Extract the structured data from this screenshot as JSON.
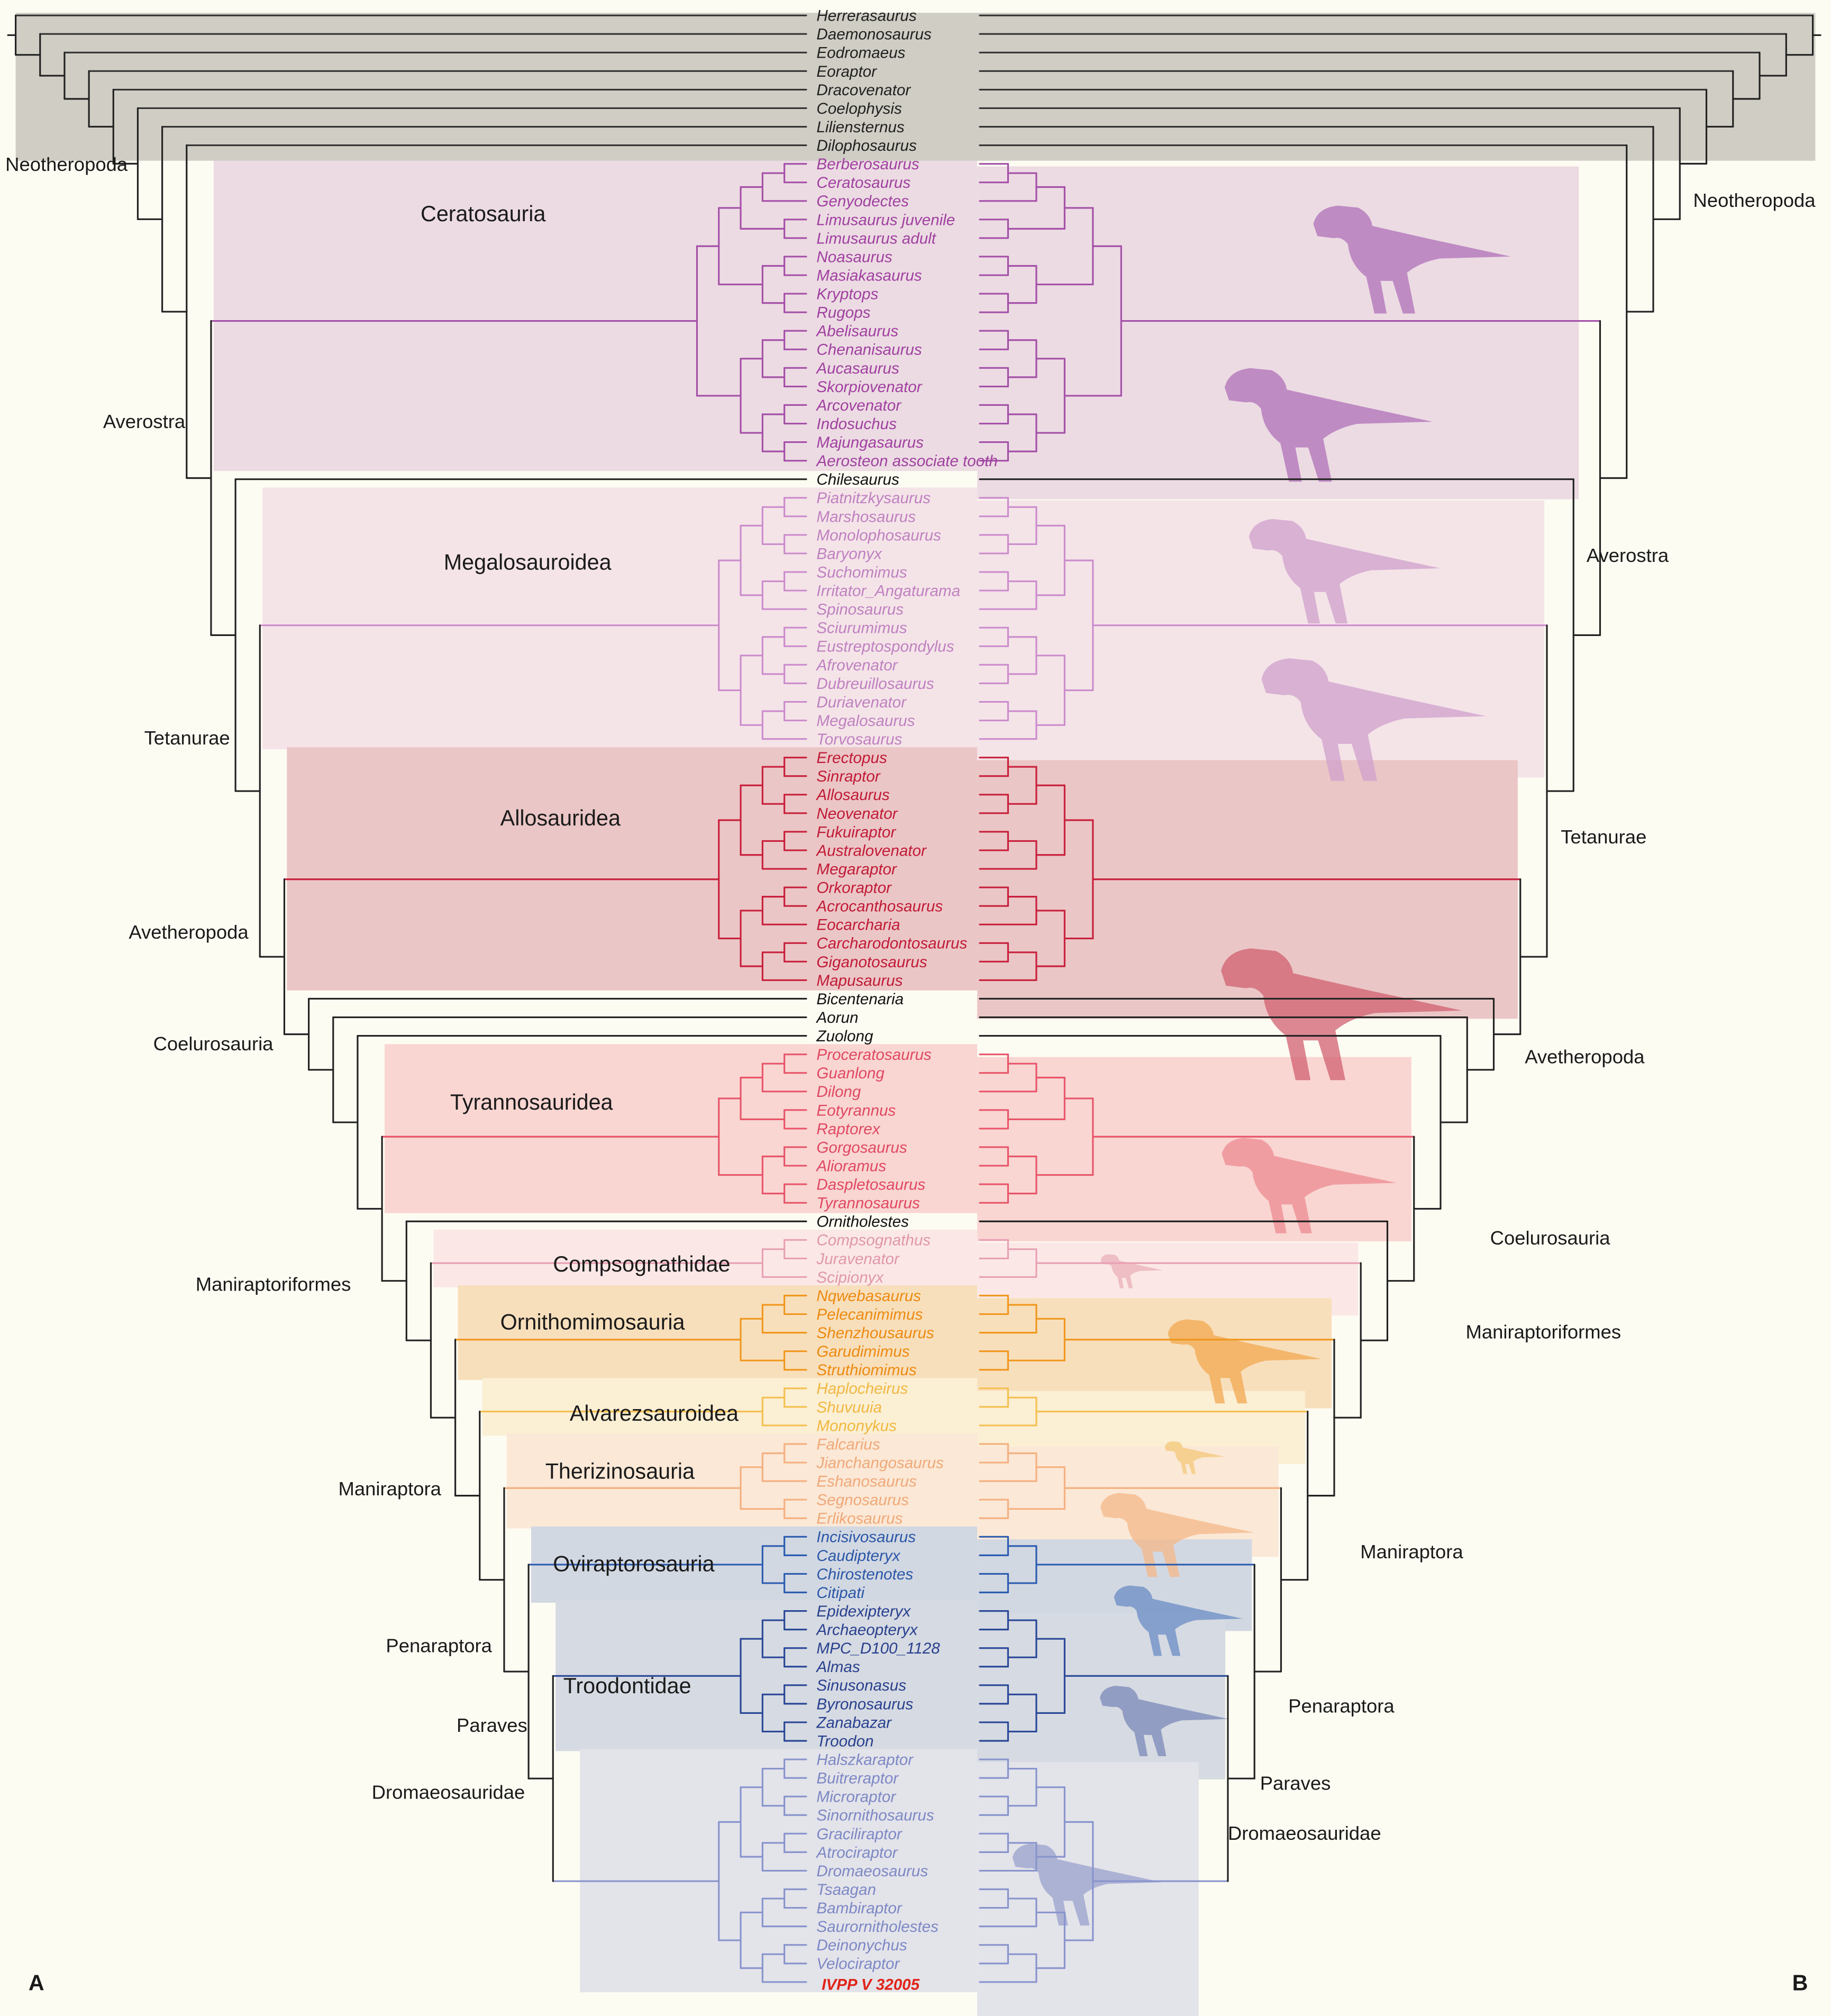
{
  "panels": {
    "left": "A",
    "right": "B"
  },
  "groups": {
    "out": {
      "label": "",
      "line": "#333333",
      "text": "#1f1f1f",
      "bg": "#cfcdc4"
    },
    "none": {
      "label": "",
      "line": "#222222",
      "text": "#111111",
      "bg": ""
    },
    "cera": {
      "label": "Ceratosauria",
      "line": "#a550a8",
      "text": "#a040a0",
      "bg": "#ecdbe3",
      "silhouette": "#b070b8"
    },
    "mega": {
      "label": "Megalosauroidea",
      "line": "#cc8ccc",
      "text": "#c080c0",
      "bg": "#f4e4e8",
      "silhouette": "#d0a0cc"
    },
    "allo": {
      "label": "Allosauridea",
      "line": "#c8203c",
      "text": "#c01a36",
      "bg": "#ebc6c6",
      "silhouette": "#d06070"
    },
    "tyr": {
      "label": "Tyrannosauridea",
      "line": "#e8556a",
      "text": "#e04862",
      "bg": "#f9d6d2",
      "silhouette": "#ec8a90"
    },
    "comp": {
      "label": "Compsognathidae",
      "line": "#e8a0b4",
      "text": "#e096aa",
      "bg": "#fbe8e6",
      "silhouette": "#eab0b8"
    },
    "orni": {
      "label": "Ornithomimosauria",
      "line": "#f0981e",
      "text": "#ec8a10",
      "bg": "#f8dfbc",
      "silhouette": "#f2a850"
    },
    "alv": {
      "label": "Alvarezsauroidea",
      "line": "#f4c050",
      "text": "#f0b840",
      "bg": "#fbefd4",
      "silhouette": "#f4c878"
    },
    "ther": {
      "label": "Therizinosauria",
      "line": "#f4b080",
      "text": "#f0a878",
      "bg": "#fbe8d6",
      "silhouette": "#f4b888"
    },
    "ovi": {
      "label": "Oviraptorosauria",
      "line": "#2c5cb0",
      "text": "#2a56a8",
      "bg": "#d2d8e2",
      "silhouette": "#6a8cc4"
    },
    "troo": {
      "label": "Troodontidae",
      "line": "#2a4898",
      "text": "#28408e",
      "bg": "#d6dae2",
      "silhouette": "#7a88b8"
    },
    "drom": {
      "label": "Dromaeosauridae",
      "line": "#8894cc",
      "text": "#7c88c4",
      "bg": "#e3e3ea",
      "silhouette": "#9aa2cc"
    }
  },
  "taxa": [
    {
      "name": "Herrerasaurus",
      "g": "out"
    },
    {
      "name": "Daemonosaurus",
      "g": "out"
    },
    {
      "name": "Eodromaeus",
      "g": "out"
    },
    {
      "name": "Eoraptor",
      "g": "out"
    },
    {
      "name": "Dracovenator",
      "g": "out"
    },
    {
      "name": "Coelophysis",
      "g": "out"
    },
    {
      "name": "Liliensternus",
      "g": "out"
    },
    {
      "name": "Dilophosaurus",
      "g": "out"
    },
    {
      "name": "Berberosaurus",
      "g": "cera"
    },
    {
      "name": "Ceratosaurus",
      "g": "cera"
    },
    {
      "name": "Genyodectes",
      "g": "cera"
    },
    {
      "name": "Limusaurus juvenile",
      "g": "cera"
    },
    {
      "name": "Limusaurus adult",
      "g": "cera"
    },
    {
      "name": "Noasaurus",
      "g": "cera"
    },
    {
      "name": "Masiakasaurus",
      "g": "cera"
    },
    {
      "name": "Kryptops",
      "g": "cera"
    },
    {
      "name": "Rugops",
      "g": "cera"
    },
    {
      "name": "Abelisaurus",
      "g": "cera"
    },
    {
      "name": "Chenanisaurus",
      "g": "cera"
    },
    {
      "name": "Aucasaurus",
      "g": "cera"
    },
    {
      "name": "Skorpiovenator",
      "g": "cera"
    },
    {
      "name": "Arcovenator",
      "g": "cera"
    },
    {
      "name": "Indosuchus",
      "g": "cera"
    },
    {
      "name": "Majungasaurus",
      "g": "cera"
    },
    {
      "name": "Aerosteon associate tooth",
      "g": "cera"
    },
    {
      "name": "Chilesaurus",
      "g": "none"
    },
    {
      "name": "Piatnitzkysaurus",
      "g": "mega"
    },
    {
      "name": "Marshosaurus",
      "g": "mega"
    },
    {
      "name": "Monolophosaurus",
      "g": "mega"
    },
    {
      "name": "Baryonyx",
      "g": "mega"
    },
    {
      "name": "Suchomimus",
      "g": "mega"
    },
    {
      "name": "Irritator_Angaturama",
      "g": "mega"
    },
    {
      "name": "Spinosaurus",
      "g": "mega"
    },
    {
      "name": "Sciurumimus",
      "g": "mega"
    },
    {
      "name": "Eustreptospondylus",
      "g": "mega"
    },
    {
      "name": "Afrovenator",
      "g": "mega"
    },
    {
      "name": "Dubreuillosaurus",
      "g": "mega"
    },
    {
      "name": "Duriavenator",
      "g": "mega"
    },
    {
      "name": "Megalosaurus",
      "g": "mega"
    },
    {
      "name": "Torvosaurus",
      "g": "mega"
    },
    {
      "name": "Erectopus",
      "g": "allo"
    },
    {
      "name": "Sinraptor",
      "g": "allo"
    },
    {
      "name": "Allosaurus",
      "g": "allo"
    },
    {
      "name": "Neovenator",
      "g": "allo"
    },
    {
      "name": "Fukuiraptor",
      "g": "allo"
    },
    {
      "name": "Australovenator",
      "g": "allo"
    },
    {
      "name": "Megaraptor",
      "g": "allo"
    },
    {
      "name": "Orkoraptor",
      "g": "allo"
    },
    {
      "name": "Acrocanthosaurus",
      "g": "allo"
    },
    {
      "name": "Eocarcharia",
      "g": "allo"
    },
    {
      "name": "Carcharodontosaurus",
      "g": "allo"
    },
    {
      "name": "Giganotosaurus",
      "g": "allo"
    },
    {
      "name": "Mapusaurus",
      "g": "allo"
    },
    {
      "name": "Bicentenaria",
      "g": "none"
    },
    {
      "name": "Aorun",
      "g": "none"
    },
    {
      "name": "Zuolong",
      "g": "none"
    },
    {
      "name": "Proceratosaurus",
      "g": "tyr"
    },
    {
      "name": "Guanlong",
      "g": "tyr"
    },
    {
      "name": "Dilong",
      "g": "tyr"
    },
    {
      "name": "Eotyrannus",
      "g": "tyr"
    },
    {
      "name": "Raptorex",
      "g": "tyr"
    },
    {
      "name": "Gorgosaurus",
      "g": "tyr"
    },
    {
      "name": "Alioramus",
      "g": "tyr"
    },
    {
      "name": "Daspletosaurus",
      "g": "tyr"
    },
    {
      "name": "Tyrannosaurus",
      "g": "tyr"
    },
    {
      "name": "Ornitholestes",
      "g": "none"
    },
    {
      "name": "Compsognathus",
      "g": "comp"
    },
    {
      "name": "Juravenator",
      "g": "comp"
    },
    {
      "name": "Scipionyx",
      "g": "comp"
    },
    {
      "name": "Nqwebasaurus",
      "g": "orni"
    },
    {
      "name": "Pelecanimimus",
      "g": "orni"
    },
    {
      "name": "Shenzhousaurus",
      "g": "orni"
    },
    {
      "name": "Garudimimus",
      "g": "orni"
    },
    {
      "name": "Struthiomimus",
      "g": "orni"
    },
    {
      "name": "Haplocheirus",
      "g": "alv"
    },
    {
      "name": "Shuvuuia",
      "g": "alv"
    },
    {
      "name": "Mononykus",
      "g": "alv"
    },
    {
      "name": "Falcarius",
      "g": "ther"
    },
    {
      "name": "Jianchangosaurus",
      "g": "ther"
    },
    {
      "name": "Eshanosaurus",
      "g": "ther"
    },
    {
      "name": "Segnosaurus",
      "g": "ther"
    },
    {
      "name": "Erlikosaurus",
      "g": "ther"
    },
    {
      "name": "Incisivosaurus",
      "g": "ovi"
    },
    {
      "name": "Caudipteryx",
      "g": "ovi"
    },
    {
      "name": "Chirostenotes",
      "g": "ovi"
    },
    {
      "name": "Citipati",
      "g": "ovi"
    },
    {
      "name": "Epidexipteryx",
      "g": "troo"
    },
    {
      "name": "Archaeopteryx",
      "g": "troo"
    },
    {
      "name": "MPC_D100_1128",
      "g": "troo"
    },
    {
      "name": "Almas",
      "g": "troo"
    },
    {
      "name": "Sinusonasus",
      "g": "troo"
    },
    {
      "name": "Byronosaurus",
      "g": "troo"
    },
    {
      "name": "Zanabazar",
      "g": "troo"
    },
    {
      "name": "Troodon",
      "g": "troo"
    },
    {
      "name": "Halszkaraptor",
      "g": "drom"
    },
    {
      "name": "Buitreraptor",
      "g": "drom"
    },
    {
      "name": "Microraptor",
      "g": "drom"
    },
    {
      "name": "Sinornithosaurus",
      "g": "drom"
    },
    {
      "name": "Graciliraptor",
      "g": "drom"
    },
    {
      "name": "Atrociraptor",
      "g": "drom"
    },
    {
      "name": "Dromaeosaurus",
      "g": "drom"
    },
    {
      "name": "Tsaagan",
      "g": "drom"
    },
    {
      "name": "Bambiraptor",
      "g": "drom"
    },
    {
      "name": "Saurornitholestes",
      "g": "drom"
    },
    {
      "name": "Deinonychus",
      "g": "drom"
    },
    {
      "name": "Velociraptor",
      "g": "drom"
    },
    {
      "name": "IVPP V 32005",
      "g": "drom",
      "highlight": "#e02418"
    }
  ],
  "backbone_labels": {
    "neotheropoda": "Neotheropoda",
    "averostra": "Averostra",
    "tetanurae": "Tetanurae",
    "avetheropoda": "Avetheropoda",
    "coelurosauria": "Coelurosauria",
    "maniraptoriformes": "Maniraptoriformes",
    "maniraptora": "Maniraptora",
    "penaraptora": "Penaraptora",
    "paraves": "Paraves",
    "dromaeosauridae": "Dromaeosauridae"
  }
}
